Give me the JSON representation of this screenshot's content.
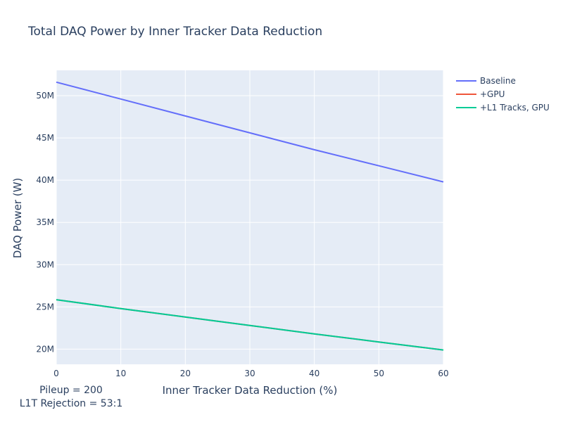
{
  "chart_data": {
    "type": "line",
    "title": "Total DAQ Power by Inner Tracker Data Reduction",
    "xlabel": "Inner Tracker Data Reduction (%)",
    "ylabel": "DAQ Power (W)",
    "xlim": [
      0,
      60
    ],
    "ylim": [
      18200000,
      53000000
    ],
    "x_ticks": [
      0,
      10,
      20,
      30,
      40,
      50,
      60
    ],
    "y_ticks": [
      20000000,
      25000000,
      30000000,
      35000000,
      40000000,
      45000000,
      50000000
    ],
    "y_tick_labels": [
      "20M",
      "25M",
      "30M",
      "35M",
      "40M",
      "45M",
      "50M"
    ],
    "grid": true,
    "legend_position": "top-right",
    "series": [
      {
        "name": "Baseline",
        "color": "#636efa",
        "x": [
          0,
          10,
          20,
          30,
          40,
          50,
          60
        ],
        "y": [
          51600000,
          49600000,
          47600000,
          45600000,
          43600000,
          41700000,
          39800000
        ]
      },
      {
        "name": "+GPU",
        "color": "#ef553b",
        "x": [
          0,
          10,
          20,
          30,
          40,
          50,
          60
        ],
        "y": [
          25850000,
          24800000,
          23800000,
          22800000,
          21800000,
          20850000,
          19900000
        ]
      },
      {
        "name": "+L1 Tracks, GPU",
        "color": "#00cc96",
        "x": [
          0,
          10,
          20,
          30,
          40,
          50,
          60
        ],
        "y": [
          25850000,
          24800000,
          23800000,
          22800000,
          21800000,
          20850000,
          19900000
        ]
      }
    ],
    "annotations": [
      "Pileup = 200",
      "L1T Rejection = 53:1"
    ]
  }
}
